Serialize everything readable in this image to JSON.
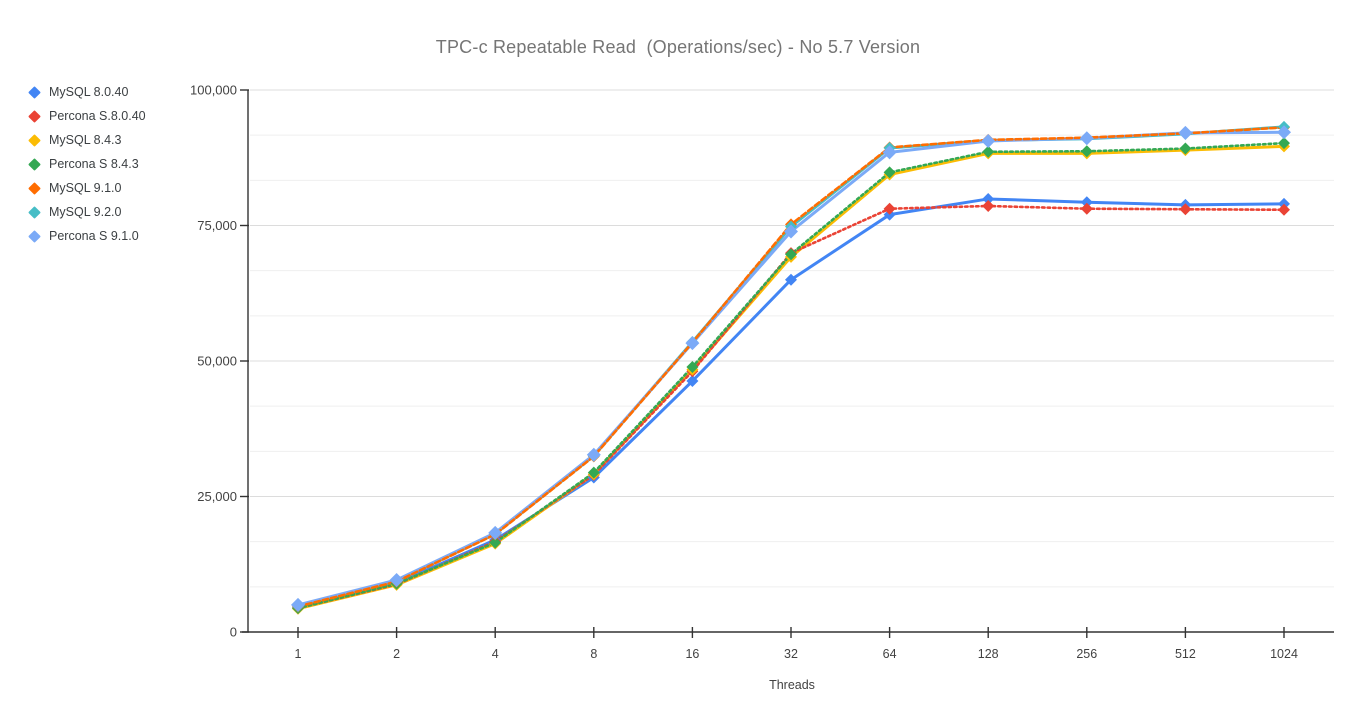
{
  "title": "TPC-c Repeatable Read  (Operations/sec) - No 5.7 Version",
  "chart_data": {
    "type": "line",
    "x_scale": "log2-categorical",
    "categories": [
      1,
      2,
      4,
      8,
      16,
      32,
      64,
      128,
      256,
      512,
      1024
    ],
    "xlabel": "Threads",
    "ylabel": "",
    "ylim": [
      0,
      100000
    ],
    "y_major_ticks": [
      0,
      25000,
      50000,
      75000,
      100000
    ],
    "y_tick_labels": [
      "0",
      "25,000",
      "50,000",
      "75,000",
      "100,000"
    ],
    "y_minor_divisions_per_major": 3,
    "grid": true,
    "legend_position": "left",
    "marker": "diamond",
    "series": [
      {
        "name": "MySQL 8.0.40",
        "color": "#4285F4",
        "line_style": "solid",
        "values": [
          4500,
          9000,
          17000,
          28500,
          46300,
          65000,
          77000,
          79900,
          79300,
          78800,
          79000
        ]
      },
      {
        "name": "Percona S.8.0.40",
        "color": "#EA4335",
        "line_style": "dotted",
        "values": [
          4400,
          8800,
          16700,
          29000,
          48100,
          69900,
          78100,
          78600,
          78100,
          78000,
          77900
        ]
      },
      {
        "name": "MySQL 8.4.3",
        "color": "#FBBC04",
        "line_style": "solid",
        "values": [
          4300,
          8700,
          16300,
          29100,
          48400,
          69200,
          84400,
          88300,
          88300,
          88900,
          89600
        ]
      },
      {
        "name": "Percona S 8.4.3",
        "color": "#34A853",
        "line_style": "dotted",
        "values": [
          4400,
          8900,
          16500,
          29400,
          48900,
          69700,
          84800,
          88600,
          88700,
          89200,
          90200
        ]
      },
      {
        "name": "MySQL 9.1.0",
        "color": "#FF6D01",
        "line_style": "dashed",
        "values": [
          4700,
          9300,
          18000,
          32400,
          53400,
          75200,
          89400,
          90800,
          91200,
          92000,
          93100
        ]
      },
      {
        "name": "MySQL 9.2.0",
        "color": "#46BDC6",
        "line_style": "solid",
        "values": [
          4800,
          9400,
          18100,
          32500,
          53500,
          74800,
          89300,
          90700,
          91000,
          91900,
          93200
        ]
      },
      {
        "name": "Percona S 9.1.0",
        "color": "#7BAAF7",
        "line_style": "solid",
        "values": [
          5000,
          9600,
          18300,
          32700,
          53300,
          73900,
          88500,
          90600,
          91100,
          92100,
          92200
        ]
      }
    ],
    "colors": {
      "title_text": "#757575",
      "axis_text": "#424242",
      "axis_line": "#333333",
      "major_gridline": "#dcdcdc",
      "minor_gridline": "#efefef",
      "background": "#ffffff"
    }
  }
}
